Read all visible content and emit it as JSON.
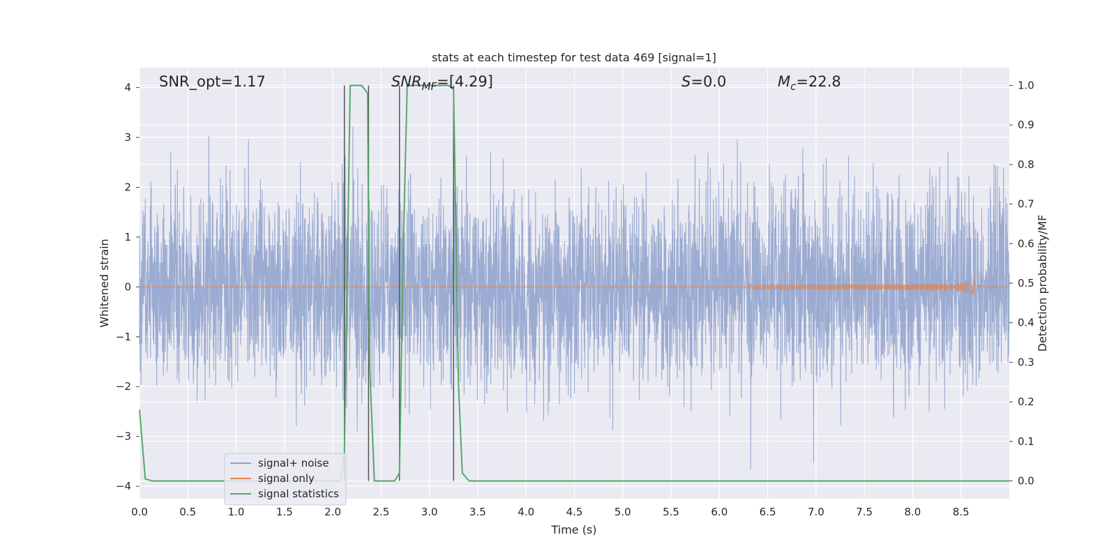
{
  "chart_data": {
    "type": "line",
    "title": "stats at each timestep for test data 469 [signal=1]",
    "xlabel": "Time (s)",
    "ylabel_left": "Whitened strain",
    "ylabel_right": "Detection probability/MF",
    "xlim": [
      0.0,
      9.0
    ],
    "ylim_left": [
      -4.25,
      4.4
    ],
    "ylim_right": [
      -0.045,
      1.045
    ],
    "grid": true,
    "legend_position": "lower-left",
    "x_ticks": [
      "0.0",
      "0.5",
      "1.0",
      "1.5",
      "2.0",
      "2.5",
      "3.0",
      "3.5",
      "4.0",
      "4.5",
      "5.0",
      "5.5",
      "6.0",
      "6.5",
      "7.0",
      "7.5",
      "8.0",
      "8.5"
    ],
    "y_ticks_left": [
      "4",
      "3",
      "2",
      "1",
      "0",
      "−1",
      "−2",
      "−3",
      "−4"
    ],
    "y_ticks_right": [
      "1.0",
      "0.9",
      "0.8",
      "0.7",
      "0.6",
      "0.5",
      "0.4",
      "0.3",
      "0.2",
      "0.1",
      "0.0"
    ],
    "annotations": {
      "snr_opt": "SNR_opt=1.17",
      "snr_mf": "SNR",
      "snr_mf_sub": "MF",
      "snr_mf_value": "=[4.29]",
      "s_label": "S",
      "s_value": "=0.0",
      "mc_label": "M",
      "mc_sub": "c",
      "mc_value": "=22.8"
    },
    "series": [
      {
        "name": "signal+ noise",
        "color": "#8da0cb",
        "axis": "left",
        "description_values": "whitened strain, noise with std ~1, t from 0 to 9 s"
      },
      {
        "name": "signal only",
        "color": "#dd8452",
        "axis": "left",
        "chirp": {
          "start": 6.3,
          "peak": 8.65,
          "peak_amplitude": 0.25
        }
      },
      {
        "name": "signal statistics",
        "color": "#55a868",
        "axis": "right",
        "x": [
          0.0,
          0.06,
          0.13,
          2.08,
          2.12,
          2.18,
          2.23,
          2.3,
          2.36,
          2.38,
          2.43,
          2.5,
          2.64,
          2.69,
          2.73,
          2.77,
          3.2,
          3.25,
          3.3,
          3.34,
          3.41,
          9.0
        ],
        "y": [
          0.18,
          0.005,
          0.0,
          0.0,
          0.07,
          1.0,
          1.0,
          1.0,
          0.98,
          0.3,
          0.0,
          0.0,
          0.0,
          0.02,
          0.6,
          1.0,
          1.0,
          0.99,
          0.25,
          0.02,
          0.0,
          0.0
        ]
      }
    ],
    "vertical_markers": [
      2.12,
      2.37,
      2.69,
      3.25
    ]
  }
}
